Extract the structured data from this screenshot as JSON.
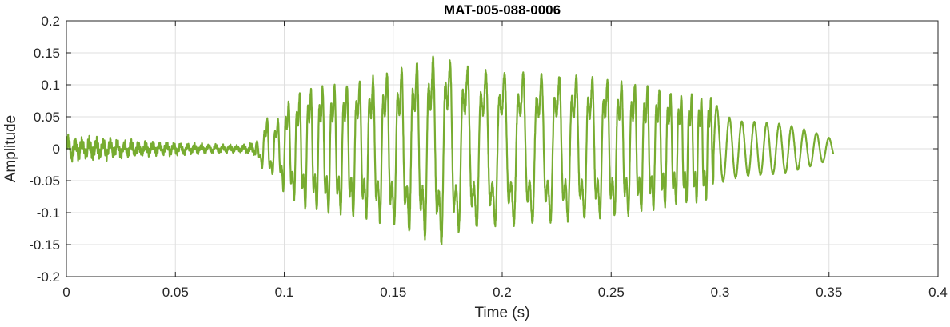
{
  "chart_data": {
    "type": "line",
    "title": "MAT-005-088-0006",
    "xlabel": "Time (s)",
    "ylabel": "Amplitude",
    "xlim": [
      0,
      0.4
    ],
    "ylim": [
      -0.2,
      0.2
    ],
    "xticks": [
      0,
      0.05,
      0.1,
      0.15,
      0.2,
      0.25,
      0.3,
      0.35,
      0.4
    ],
    "xtick_labels": [
      "0",
      "0.05",
      "0.1",
      "0.15",
      "0.2",
      "0.25",
      "0.3",
      "0.35",
      "0.4"
    ],
    "yticks": [
      -0.2,
      -0.15,
      -0.1,
      -0.05,
      0,
      0.05,
      0.1,
      0.15,
      0.2
    ],
    "ytick_labels": [
      "-0.2",
      "-0.15",
      "-0.1",
      "-0.05",
      "0",
      "0.05",
      "0.1",
      "0.15",
      "0.2"
    ],
    "grid": true,
    "box": true,
    "line_color": "#77AC30",
    "series": [
      {
        "x_start": 0,
        "x_end": 0.352,
        "envelope": [
          {
            "t": 0.0,
            "a": 0.022
          },
          {
            "t": 0.01,
            "a": 0.018
          },
          {
            "t": 0.02,
            "a": 0.016
          },
          {
            "t": 0.03,
            "a": 0.013
          },
          {
            "t": 0.04,
            "a": 0.011
          },
          {
            "t": 0.05,
            "a": 0.01
          },
          {
            "t": 0.06,
            "a": 0.008
          },
          {
            "t": 0.07,
            "a": 0.007
          },
          {
            "t": 0.08,
            "a": 0.006
          },
          {
            "t": 0.087,
            "a": 0.01
          },
          {
            "t": 0.092,
            "a": 0.055
          },
          {
            "t": 0.096,
            "a": 0.045
          },
          {
            "t": 0.1,
            "a": 0.08
          },
          {
            "t": 0.11,
            "a": 0.11
          },
          {
            "t": 0.13,
            "a": 0.12
          },
          {
            "t": 0.15,
            "a": 0.14
          },
          {
            "t": 0.16,
            "a": 0.155
          },
          {
            "t": 0.173,
            "a": 0.175
          },
          {
            "t": 0.18,
            "a": 0.15
          },
          {
            "t": 0.2,
            "a": 0.14
          },
          {
            "t": 0.22,
            "a": 0.135
          },
          {
            "t": 0.24,
            "a": 0.13
          },
          {
            "t": 0.26,
            "a": 0.12
          },
          {
            "t": 0.28,
            "a": 0.1
          },
          {
            "t": 0.296,
            "a": 0.095
          },
          {
            "t": 0.3,
            "a": 0.055
          },
          {
            "t": 0.31,
            "a": 0.045
          },
          {
            "t": 0.33,
            "a": 0.04
          },
          {
            "t": 0.345,
            "a": 0.025
          },
          {
            "t": 0.352,
            "a": 0.015
          }
        ]
      }
    ]
  }
}
